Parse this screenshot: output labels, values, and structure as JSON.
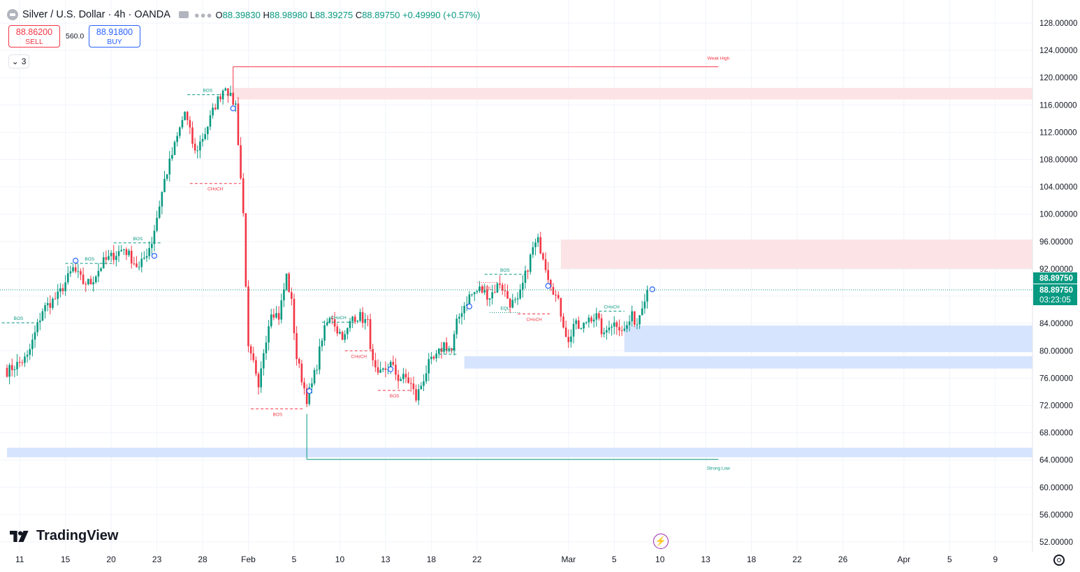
{
  "legend": {
    "symbol": "Silver / U.S. Dollar · 4h · OANDA",
    "ohlc": [
      {
        "k": "O",
        "v": "88.39830"
      },
      {
        "k": "H",
        "v": "88.98980"
      },
      {
        "k": "L",
        "v": "88.39275"
      },
      {
        "k": "C",
        "v": "88.89750"
      }
    ],
    "change": "+0.49990 (+0.57%)"
  },
  "trade": {
    "sell_price": "88.86200",
    "sell_label": "SELL",
    "spread": "560.0",
    "buy_price": "88.91800",
    "buy_label": "BUY"
  },
  "indicators_collapsed": "3",
  "brand": "TradingView",
  "colors": {
    "up": "#089981",
    "down": "#f23645",
    "supply_zone": "#fce4e6",
    "demand_zone": "#d6e4fd",
    "price_tag": "#089981"
  },
  "chart_data": {
    "type": "candlestick",
    "symbol": "Silver / U.S. Dollar",
    "timeframe": "4h",
    "ylim": [
      50,
      129
    ],
    "y_ticks": [
      "52.00000",
      "56.00000",
      "60.00000",
      "64.00000",
      "68.00000",
      "72.00000",
      "76.00000",
      "80.00000",
      "84.00000",
      "88.00000",
      "92.00000",
      "96.00000",
      "100.00000",
      "104.00000",
      "108.00000",
      "112.00000",
      "116.00000",
      "120.00000",
      "124.00000",
      "128.00000"
    ],
    "x_ticks": [
      {
        "label": "11",
        "bar": 5
      },
      {
        "label": "15",
        "bar": 23
      },
      {
        "label": "20",
        "bar": 41
      },
      {
        "label": "23",
        "bar": 59
      },
      {
        "label": "28",
        "bar": 77
      },
      {
        "label": "Feb",
        "bar": 95
      },
      {
        "label": "5",
        "bar": 113
      },
      {
        "label": "10",
        "bar": 131
      },
      {
        "label": "13",
        "bar": 149
      },
      {
        "label": "18",
        "bar": 167
      },
      {
        "label": "22",
        "bar": 185
      },
      {
        "label": "Mar",
        "bar": 221
      },
      {
        "label": "5",
        "bar": 239
      },
      {
        "label": "10",
        "bar": 257
      },
      {
        "label": "13",
        "bar": 275
      },
      {
        "label": "18",
        "bar": 293
      },
      {
        "label": "22",
        "bar": 311
      },
      {
        "label": "26",
        "bar": 329
      },
      {
        "label": "Apr",
        "bar": 353
      },
      {
        "label": "5",
        "bar": 371
      },
      {
        "label": "9",
        "bar": 389
      }
    ],
    "anchors": [
      [
        0,
        77
      ],
      [
        8,
        79
      ],
      [
        14,
        86
      ],
      [
        20,
        88
      ],
      [
        26,
        92
      ],
      [
        30,
        90
      ],
      [
        33,
        90
      ],
      [
        38,
        93
      ],
      [
        42,
        94
      ],
      [
        46,
        95
      ],
      [
        52,
        92
      ],
      [
        57,
        96
      ],
      [
        62,
        105
      ],
      [
        66,
        110
      ],
      [
        70,
        115
      ],
      [
        74,
        109
      ],
      [
        78,
        112
      ],
      [
        82,
        116
      ],
      [
        86,
        119
      ],
      [
        88,
        117
      ],
      [
        90,
        116
      ],
      [
        93,
        100
      ],
      [
        95,
        80
      ],
      [
        97,
        78
      ],
      [
        99,
        74
      ],
      [
        101,
        80
      ],
      [
        104,
        86
      ],
      [
        107,
        85
      ],
      [
        110,
        91
      ],
      [
        112,
        87
      ],
      [
        114,
        79
      ],
      [
        116,
        76
      ],
      [
        118,
        73
      ],
      [
        120,
        75
      ],
      [
        122,
        78
      ],
      [
        124,
        82
      ],
      [
        126,
        84
      ],
      [
        128,
        85
      ],
      [
        130,
        83
      ],
      [
        133,
        82
      ],
      [
        136,
        85
      ],
      [
        139,
        85
      ],
      [
        142,
        84
      ],
      [
        144,
        78
      ],
      [
        146,
        76
      ],
      [
        148,
        77
      ],
      [
        151,
        78
      ],
      [
        154,
        76
      ],
      [
        157,
        76
      ],
      [
        159,
        75
      ],
      [
        161,
        73
      ],
      [
        163,
        75
      ],
      [
        166,
        78
      ],
      [
        169,
        79
      ],
      [
        172,
        81
      ],
      [
        175,
        80
      ],
      [
        177,
        84
      ],
      [
        179,
        86
      ],
      [
        182,
        88
      ],
      [
        186,
        89
      ],
      [
        190,
        88
      ],
      [
        194,
        90
      ],
      [
        198,
        87
      ],
      [
        201,
        87
      ],
      [
        204,
        91
      ],
      [
        207,
        95
      ],
      [
        209,
        96
      ],
      [
        211,
        94
      ],
      [
        213,
        91
      ],
      [
        215,
        89
      ],
      [
        217,
        87
      ],
      [
        219,
        84
      ],
      [
        221,
        81
      ],
      [
        223,
        84
      ],
      [
        226,
        83
      ],
      [
        229,
        85
      ],
      [
        232,
        85
      ],
      [
        235,
        82
      ],
      [
        237,
        84
      ],
      [
        240,
        84
      ],
      [
        243,
        83
      ],
      [
        246,
        85
      ],
      [
        248,
        84
      ],
      [
        250,
        87
      ],
      [
        252,
        89
      ]
    ],
    "last_price": "88.89750",
    "countdown": "03:23:05",
    "zones": [
      {
        "type": "supply",
        "top": 118.5,
        "bottom": 116.8,
        "x1": 89
      },
      {
        "type": "supply",
        "top": 96.3,
        "bottom": 92.0,
        "x1": 218
      },
      {
        "type": "demand",
        "top": 83.7,
        "bottom": 79.8,
        "x1": 243
      },
      {
        "type": "demand",
        "top": 79.2,
        "bottom": 77.4,
        "x1": 180
      },
      {
        "type": "demand",
        "top": 65.8,
        "bottom": 64.4,
        "x1": 0
      }
    ],
    "levels": [
      {
        "label": "Weak High",
        "value": 121.6,
        "x1": 89,
        "x2": 280,
        "type": "down"
      },
      {
        "label": "Strong Low",
        "value": 64.1,
        "x1": 118,
        "x2": 280,
        "type": "up"
      }
    ],
    "structure": [
      {
        "label": "BOS",
        "value": 84.1,
        "x1": -2,
        "x2": 11,
        "type": "up"
      },
      {
        "label": "BOS",
        "value": 92.8,
        "x1": 23,
        "x2": 42,
        "type": "up"
      },
      {
        "label": "BOS",
        "value": 95.8,
        "x1": 42,
        "x2": 61,
        "type": "up"
      },
      {
        "label": "BOS",
        "value": 117.5,
        "x1": 71,
        "x2": 87,
        "type": "up"
      },
      {
        "label": "CHoCH",
        "value": 104.5,
        "x1": 72,
        "x2": 92,
        "type": "down"
      },
      {
        "label": "BOS",
        "value": 71.5,
        "x1": 96,
        "x2": 117,
        "type": "down"
      },
      {
        "label": "CHoCH",
        "value": 84.2,
        "x1": 124,
        "x2": 137,
        "type": "up"
      },
      {
        "label": "CHoCH",
        "value": 80.0,
        "x1": 133,
        "x2": 144,
        "type": "down"
      },
      {
        "label": "BOS",
        "value": 74.2,
        "x1": 146,
        "x2": 159,
        "type": "down"
      },
      {
        "label": "CHoCH",
        "value": 79.5,
        "x1": 170,
        "x2": 177,
        "type": "up"
      },
      {
        "label": "EQL",
        "value": 90.0,
        "x1": 185,
        "x2": 193,
        "type": "down"
      },
      {
        "label": "BOS",
        "value": 91.2,
        "x1": 188,
        "x2": 204,
        "type": "up"
      },
      {
        "label": "EQL",
        "value": 85.6,
        "x1": 190,
        "x2": 202,
        "type": "up"
      },
      {
        "label": "CHoCH",
        "value": 85.4,
        "x1": 201,
        "x2": 214,
        "type": "down"
      },
      {
        "label": "CHoCH",
        "value": 85.8,
        "x1": 233,
        "x2": 243,
        "type": "up"
      }
    ],
    "markers": [
      [
        27,
        93.2
      ],
      [
        58,
        93.9
      ],
      [
        89,
        115.5
      ],
      [
        119,
        74.1
      ],
      [
        151,
        77.3
      ],
      [
        182,
        86.5
      ],
      [
        213,
        89.5
      ],
      [
        254,
        89.0
      ]
    ]
  }
}
